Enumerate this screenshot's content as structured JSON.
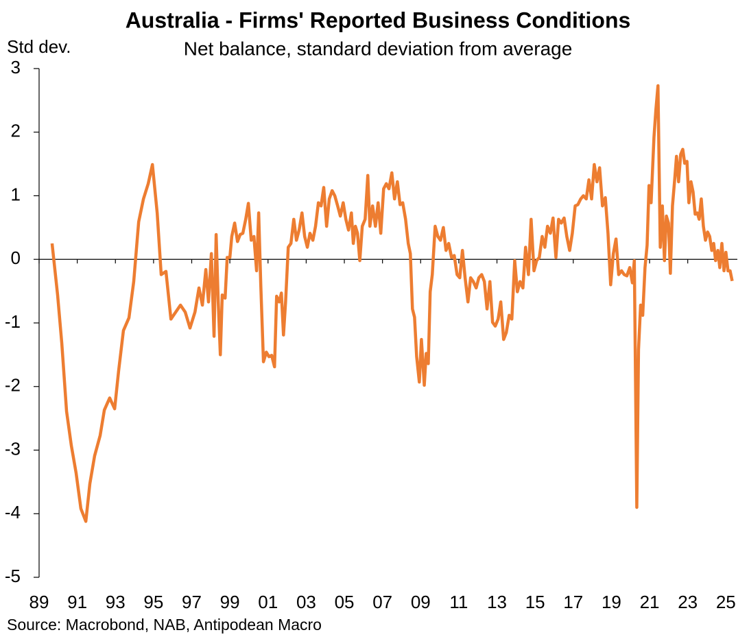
{
  "chart_data": {
    "type": "line",
    "title": "Australia - Firms' Reported Business Conditions",
    "subtitle": "Net balance, standard deviation from average",
    "y_label": "Std dev.",
    "source": "Source: Macrobond, NAB, Antipodean Macro",
    "color": "#ed7d31",
    "xlim": [
      1989,
      2025.6
    ],
    "ylim": [
      -5,
      3
    ],
    "yticks": [
      -5,
      -4,
      -3,
      -2,
      -1,
      0,
      1,
      2,
      3
    ],
    "xticks": [
      {
        "value": 1989,
        "label": "89"
      },
      {
        "value": 1991,
        "label": "91"
      },
      {
        "value": 1993,
        "label": "93"
      },
      {
        "value": 1995,
        "label": "95"
      },
      {
        "value": 1997,
        "label": "97"
      },
      {
        "value": 1999,
        "label": "99"
      },
      {
        "value": 2001,
        "label": "01"
      },
      {
        "value": 2003,
        "label": "03"
      },
      {
        "value": 2005,
        "label": "05"
      },
      {
        "value": 2007,
        "label": "07"
      },
      {
        "value": 2009,
        "label": "09"
      },
      {
        "value": 2011,
        "label": "11"
      },
      {
        "value": 2013,
        "label": "13"
      },
      {
        "value": 2015,
        "label": "15"
      },
      {
        "value": 2017,
        "label": "17"
      },
      {
        "value": 2019,
        "label": "19"
      },
      {
        "value": 2021,
        "label": "21"
      },
      {
        "value": 2023,
        "label": "23"
      },
      {
        "value": 2025,
        "label": "25"
      }
    ],
    "x": [
      1989.68,
      1989.97,
      1990.19,
      1990.44,
      1990.69,
      1990.94,
      1991.19,
      1991.45,
      1991.66,
      1991.91,
      1992.2,
      1992.42,
      1992.7,
      1992.96,
      1993.17,
      1993.42,
      1993.71,
      1993.96,
      1994.22,
      1994.47,
      1994.72,
      1994.94,
      1995.19,
      1995.4,
      1995.65,
      1995.91,
      1996.16,
      1996.41,
      1996.66,
      1996.91,
      1997.17,
      1997.38,
      1997.56,
      1997.74,
      1997.88,
      1998.03,
      1998.17,
      1998.28,
      1998.39,
      1998.5,
      1998.6,
      1998.75,
      1998.86,
      1999.0,
      1999.1,
      1999.25,
      1999.4,
      1999.54,
      1999.68,
      1999.83,
      1999.97,
      2000.12,
      2000.26,
      2000.4,
      2000.51,
      2000.62,
      2000.76,
      2000.91,
      2001.05,
      2001.19,
      2001.34,
      2001.45,
      2001.59,
      2001.7,
      2001.81,
      2001.92,
      2002.06,
      2002.2,
      2002.35,
      2002.49,
      2002.63,
      2002.78,
      2002.92,
      2003.06,
      2003.2,
      2003.35,
      2003.49,
      2003.64,
      2003.78,
      2003.92,
      2004.07,
      2004.21,
      2004.36,
      2004.5,
      2004.65,
      2004.79,
      2004.94,
      2005.08,
      2005.22,
      2005.37,
      2005.47,
      2005.58,
      2005.69,
      2005.81,
      2005.94,
      2006.09,
      2006.23,
      2006.34,
      2006.48,
      2006.63,
      2006.77,
      2006.91,
      2007.06,
      2007.2,
      2007.34,
      2007.49,
      2007.63,
      2007.78,
      2007.92,
      2008.06,
      2008.21,
      2008.35,
      2008.46,
      2008.57,
      2008.68,
      2008.79,
      2008.93,
      2009.04,
      2009.19,
      2009.29,
      2009.4,
      2009.5,
      2009.61,
      2009.76,
      2009.9,
      2010.04,
      2010.19,
      2010.33,
      2010.47,
      2010.62,
      2010.76,
      2010.91,
      2011.05,
      2011.19,
      2011.33,
      2011.48,
      2011.62,
      2011.76,
      2011.91,
      2012.05,
      2012.2,
      2012.34,
      2012.48,
      2012.63,
      2012.77,
      2012.91,
      2013.06,
      2013.2,
      2013.35,
      2013.49,
      2013.64,
      2013.78,
      2013.93,
      2014.07,
      2014.21,
      2014.36,
      2014.5,
      2014.65,
      2014.79,
      2014.94,
      2015.08,
      2015.22,
      2015.37,
      2015.51,
      2015.65,
      2015.8,
      2015.94,
      2016.09,
      2016.23,
      2016.37,
      2016.52,
      2016.66,
      2016.81,
      2016.95,
      2017.1,
      2017.24,
      2017.39,
      2017.53,
      2017.68,
      2017.82,
      2017.96,
      2018.1,
      2018.24,
      2018.38,
      2018.53,
      2018.68,
      2018.82,
      2018.96,
      2019.1,
      2019.24,
      2019.38,
      2019.53,
      2019.67,
      2019.81,
      2019.96,
      2020.1,
      2020.2,
      2020.33,
      2020.42,
      2020.53,
      2020.64,
      2020.76,
      2020.87,
      2020.97,
      2021.08,
      2021.23,
      2021.33,
      2021.44,
      2021.56,
      2021.67,
      2021.78,
      2021.88,
      2021.99,
      2022.09,
      2022.2,
      2022.32,
      2022.41,
      2022.52,
      2022.63,
      2022.74,
      2022.84,
      2022.96,
      2023.06,
      2023.17,
      2023.28,
      2023.39,
      2023.5,
      2023.6,
      2023.71,
      2023.82,
      2023.93,
      2024.04,
      2024.15,
      2024.26,
      2024.36,
      2024.46,
      2024.58,
      2024.68,
      2024.79,
      2024.9,
      2025.0,
      2025.11,
      2025.22,
      2025.33
    ],
    "values": [
      0.25,
      -0.56,
      -1.32,
      -2.39,
      -2.93,
      -3.36,
      -3.92,
      -4.12,
      -3.53,
      -3.09,
      -2.77,
      -2.37,
      -2.18,
      -2.35,
      -1.75,
      -1.12,
      -0.92,
      -0.35,
      0.59,
      0.95,
      1.19,
      1.49,
      0.73,
      -0.24,
      -0.19,
      -0.94,
      -0.83,
      -0.72,
      -0.83,
      -1.08,
      -0.83,
      -0.45,
      -0.72,
      -0.16,
      -0.67,
      0.09,
      -1.21,
      0.39,
      -0.67,
      -1.5,
      -0.56,
      -0.61,
      0.03,
      0.03,
      0.36,
      0.57,
      0.28,
      0.39,
      0.41,
      0.63,
      0.88,
      0.3,
      0.36,
      -0.18,
      0.73,
      -0.4,
      -1.61,
      -1.46,
      -1.53,
      -1.51,
      -1.69,
      -0.58,
      -0.67,
      -0.53,
      -1.19,
      -0.67,
      0.19,
      0.25,
      0.63,
      0.3,
      0.46,
      0.73,
      0.36,
      0.19,
      0.41,
      0.3,
      0.52,
      0.89,
      0.84,
      1.13,
      0.52,
      0.95,
      1.08,
      1.0,
      0.84,
      0.68,
      0.89,
      0.63,
      0.46,
      0.73,
      0.25,
      0.52,
      0.41,
      -0.02,
      0.52,
      0.63,
      1.32,
      0.52,
      0.84,
      0.52,
      0.89,
      0.41,
      1.11,
      1.19,
      1.11,
      1.36,
      0.95,
      1.22,
      0.86,
      0.89,
      0.63,
      0.25,
      0.09,
      -0.78,
      -0.91,
      -1.53,
      -1.93,
      -1.26,
      -1.98,
      -1.48,
      -1.64,
      -0.51,
      -0.24,
      0.52,
      0.36,
      0.3,
      0.5,
      0.14,
      0.25,
      0.03,
      0.06,
      -0.24,
      -0.29,
      0.14,
      -0.29,
      -0.67,
      -0.29,
      -0.35,
      -0.45,
      -0.29,
      -0.24,
      -0.35,
      -0.78,
      -0.35,
      -0.99,
      -1.05,
      -0.94,
      -0.67,
      -1.26,
      -1.15,
      -0.88,
      -0.94,
      -0.02,
      -0.51,
      -0.35,
      -0.45,
      0.19,
      -0.24,
      0.63,
      -0.18,
      -0.02,
      0.03,
      0.36,
      0.19,
      0.52,
      0.41,
      0.65,
      0.03,
      0.63,
      0.57,
      0.65,
      0.36,
      0.14,
      0.41,
      0.84,
      0.86,
      0.95,
      1.0,
      0.95,
      1.25,
      0.95,
      1.49,
      1.22,
      1.44,
      0.84,
      0.97,
      0.41,
      -0.4,
      0.09,
      0.32,
      -0.24,
      -0.18,
      -0.24,
      -0.26,
      -0.13,
      -0.37,
      -0.02,
      -3.9,
      -1.42,
      -0.72,
      -0.88,
      -0.13,
      0.22,
      1.16,
      0.89,
      1.92,
      2.35,
      2.73,
      0.19,
      0.84,
      -0.02,
      0.68,
      0.57,
      -0.22,
      0.84,
      1.27,
      1.62,
      1.22,
      1.65,
      1.73,
      1.51,
      1.54,
      0.89,
      1.22,
      1.06,
      0.71,
      0.73,
      0.63,
      0.95,
      0.52,
      0.3,
      0.43,
      0.36,
      0.14,
      0.25,
      -0.02,
      0.14,
      -0.13,
      0.25,
      -0.18,
      0.11,
      -0.18,
      -0.18,
      -0.34
    ]
  }
}
